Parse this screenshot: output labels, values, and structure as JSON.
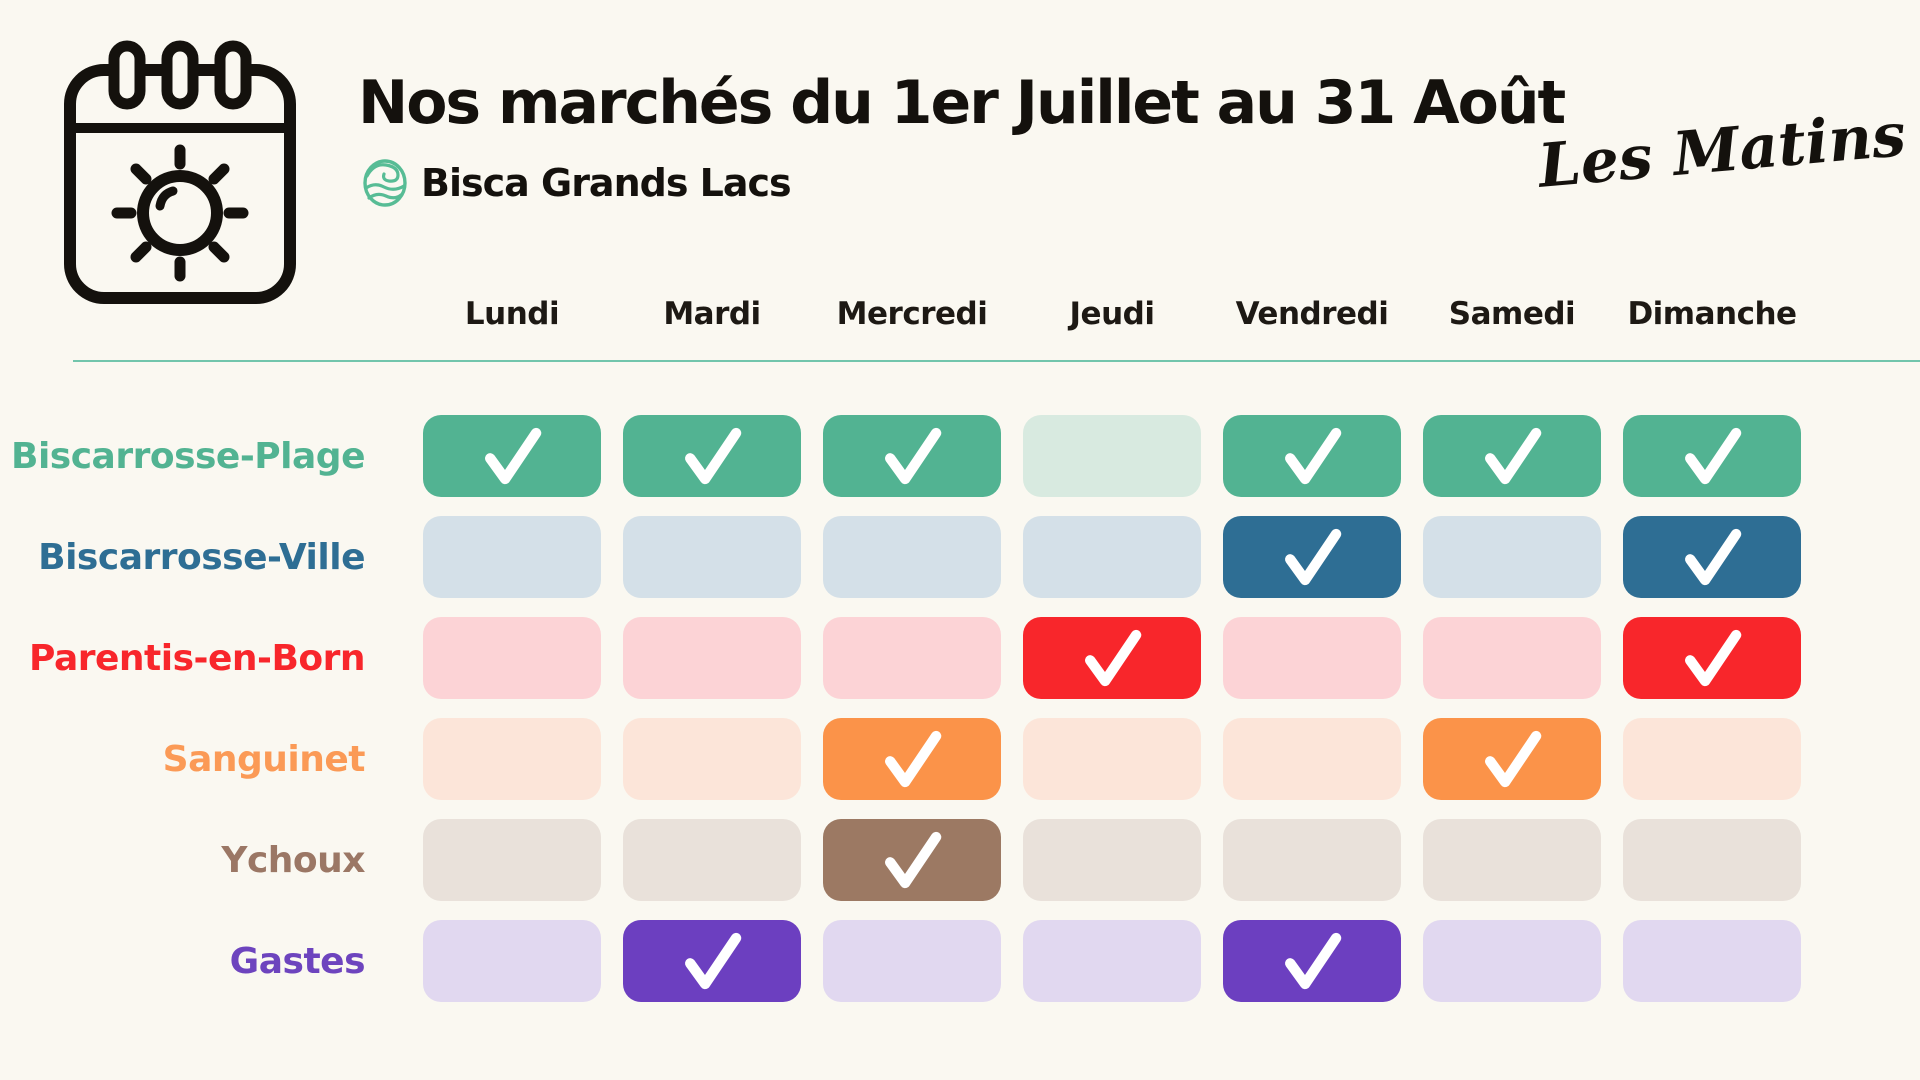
{
  "page": {
    "background": "#FAF8F1"
  },
  "header": {
    "title": "Nos marchés du 1er Juillet au 31 Août",
    "brand": "Bisca Grands Lacs",
    "tagline": "Les Matins",
    "calendar_icon": "calendar-sun-icon",
    "brand_icon": "wave-logo-icon",
    "brand_icon_color": "#57BC95",
    "text_color": "#14110D",
    "divider_color": "#72C5AC"
  },
  "chart_data": {
    "type": "table",
    "title": "Nos marchés du 1er Juillet au 31 Août",
    "subtitle": "Bisca Grands Lacs — Les Matins",
    "columns": [
      "Lundi",
      "Mardi",
      "Mercredi",
      "Jeudi",
      "Vendredi",
      "Samedi",
      "Dimanche"
    ],
    "check_icon": "checkmark-icon",
    "check_color": "#FFFFFF",
    "rows": [
      {
        "name": "Biscarrosse-Plage",
        "label_color": "#52B392",
        "active_color": "#52B392",
        "inactive_color": "#D8EAE0",
        "checked": [
          true,
          true,
          true,
          false,
          true,
          true,
          true
        ]
      },
      {
        "name": "Biscarrosse-Ville",
        "label_color": "#2E6E94",
        "active_color": "#2E6E94",
        "inactive_color": "#D4E0E8",
        "checked": [
          false,
          false,
          false,
          false,
          true,
          false,
          true
        ]
      },
      {
        "name": "Parentis-en-Born",
        "label_color": "#F8262B",
        "active_color": "#F8262B",
        "inactive_color": "#FCD3D6",
        "checked": [
          false,
          false,
          false,
          true,
          false,
          false,
          true
        ]
      },
      {
        "name": "Sanguinet",
        "label_color": "#FB9A56",
        "active_color": "#FB9349",
        "inactive_color": "#FCE5D9",
        "checked": [
          false,
          false,
          true,
          false,
          false,
          true,
          false
        ]
      },
      {
        "name": "Ychoux",
        "label_color": "#9B7765",
        "active_color": "#9C7963",
        "inactive_color": "#E9E1DA",
        "checked": [
          false,
          false,
          true,
          false,
          false,
          false,
          false
        ]
      },
      {
        "name": "Gastes",
        "label_color": "#6D44BE",
        "active_color": "#6C3FC0",
        "inactive_color": "#E1D8F0",
        "checked": [
          false,
          true,
          false,
          false,
          true,
          false,
          false
        ]
      }
    ]
  }
}
